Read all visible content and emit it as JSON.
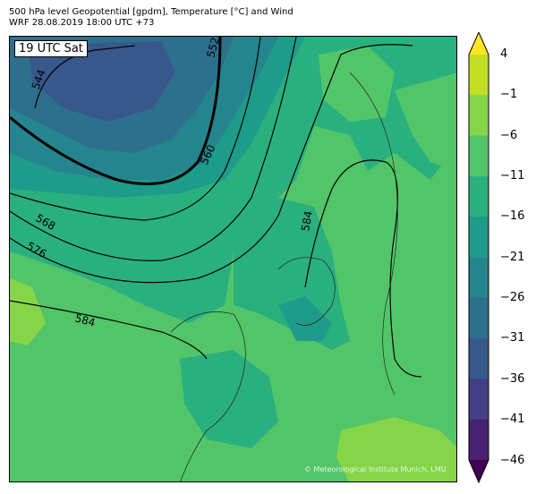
{
  "title": {
    "line1": "500 hPa level Geopotential [gpdm], Temperature [°C] and Wind",
    "line2": "WRF 28.08.2019 18:00 UTC +73"
  },
  "time_label": "19 UTC Sat",
  "copyright": "© Meteorological Institute Munich, LMU",
  "contour_labels": {
    "c544": "544",
    "c552": "552",
    "c560": "560",
    "c568": "568",
    "c576": "576",
    "c584a": "584",
    "c584b": "584"
  },
  "colorbar": {
    "ticks": [
      "4",
      "−1",
      "−6",
      "−11",
      "−16",
      "−21",
      "−26",
      "−31",
      "−36",
      "−41",
      "−46"
    ],
    "colors": [
      "#fde725",
      "#c2df23",
      "#86d549",
      "#52c569",
      "#2ab07f",
      "#1e9b8a",
      "#25858e",
      "#2d708e",
      "#38588c",
      "#433e85",
      "#482173",
      "#440154"
    ],
    "cmap": "viridis",
    "unit": "°C"
  }
}
